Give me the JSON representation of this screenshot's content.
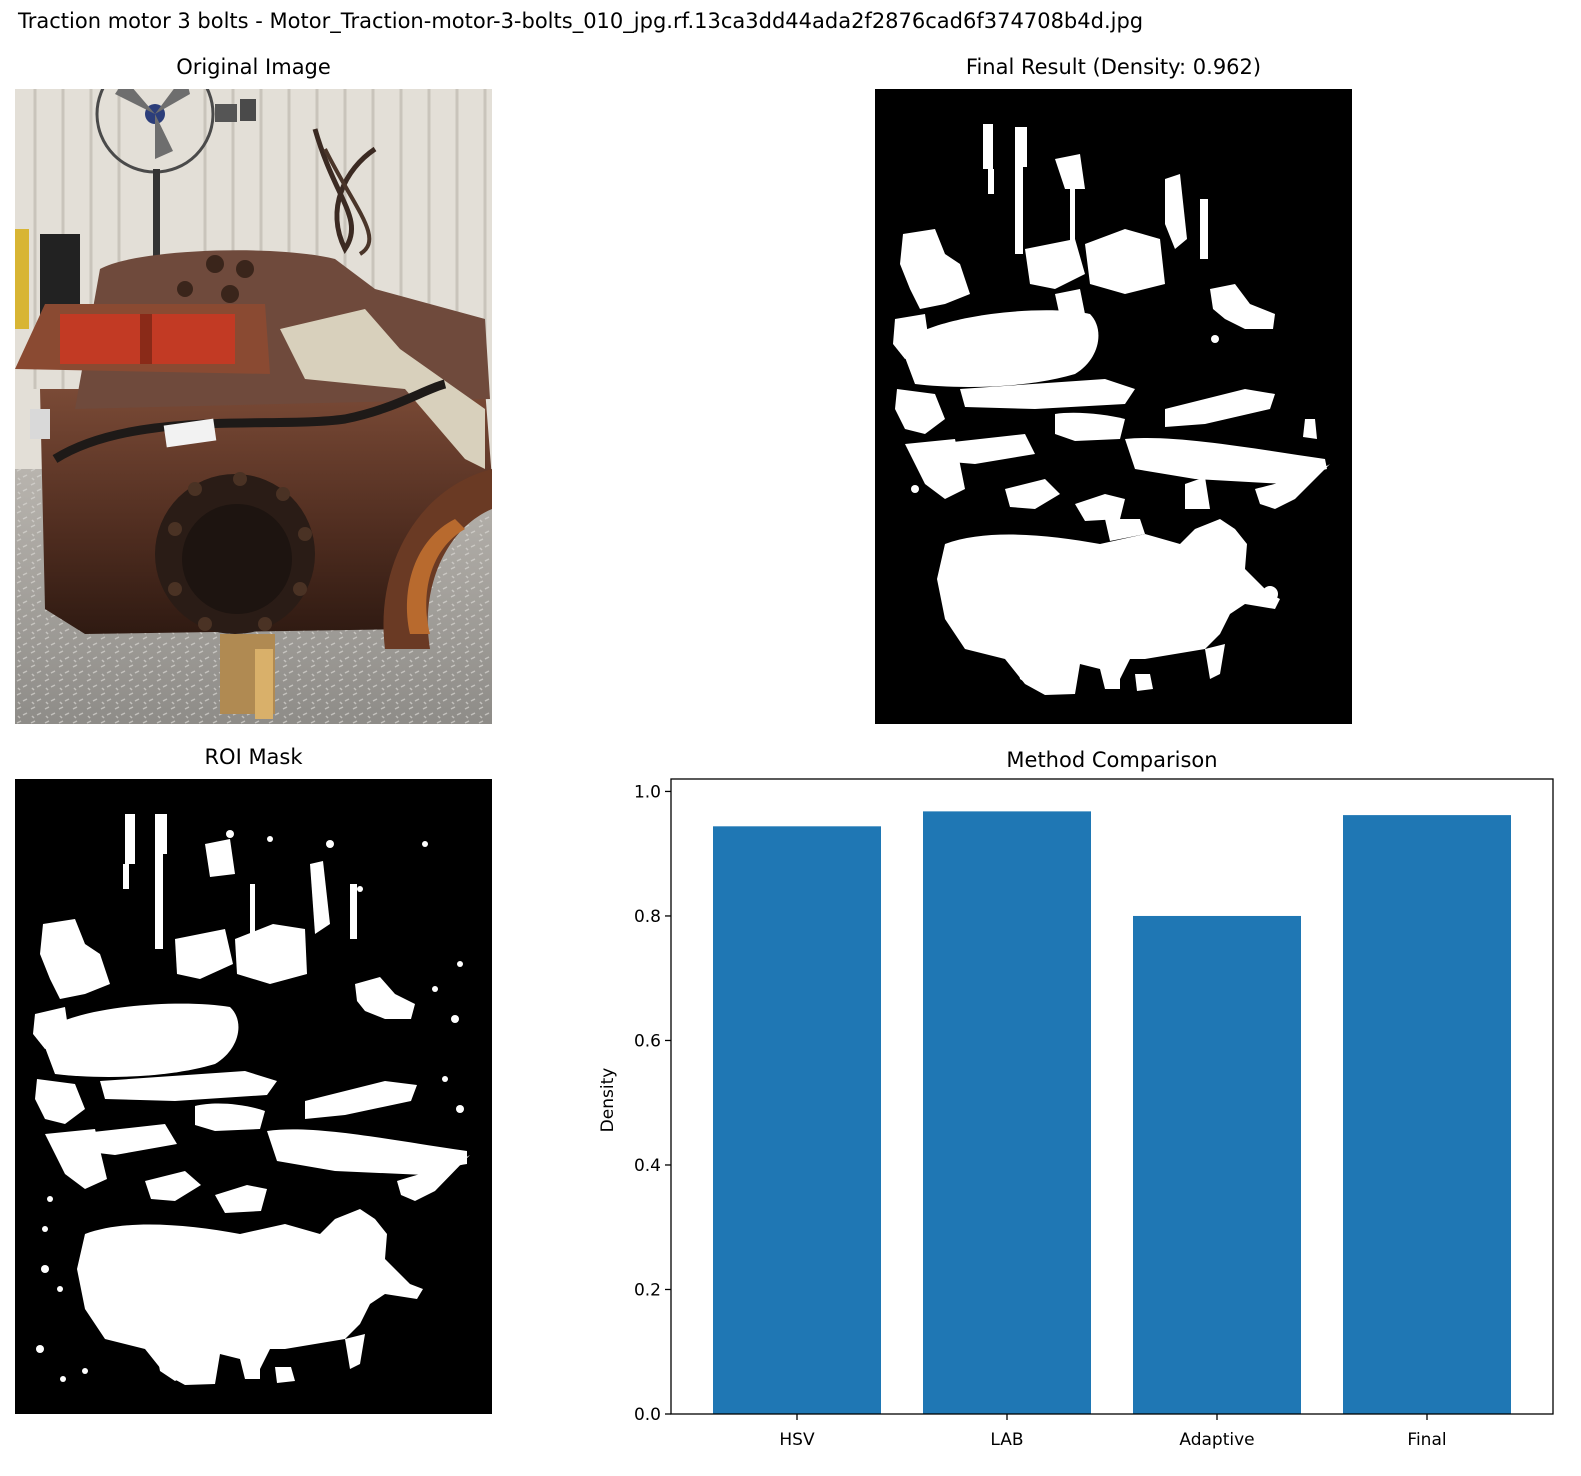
{
  "figure": {
    "suptitle": "Traction motor 3 bolts - Motor_Traction-motor-3-bolts_010_jpg.rf.13ca3dd44ada2f2876cad6f374708b4d.jpg",
    "panels": {
      "original_title": "Original Image",
      "final_title": "Final Result (Density: 0.962)",
      "roi_title": "ROI Mask"
    }
  },
  "chart_data": {
    "type": "bar",
    "title": "Method Comparison",
    "categories": [
      "HSV",
      "LAB",
      "Adaptive",
      "Final"
    ],
    "values": [
      0.944,
      0.968,
      0.8,
      0.962
    ],
    "xlabel": "",
    "ylabel": "Density",
    "ylim": [
      0,
      1.02
    ],
    "yticks": [
      0.0,
      0.2,
      0.4,
      0.6,
      0.8,
      1.0
    ],
    "bar_color": "#1f77b4",
    "grid": false
  }
}
